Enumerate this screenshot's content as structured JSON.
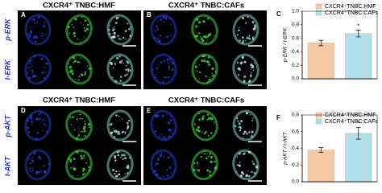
{
  "panels": [
    {
      "letter": "A",
      "title": "CXCR4⁺ TNBC:HMF"
    },
    {
      "letter": "B",
      "title": "CXCR4⁺ TNBC:CAFs"
    },
    {
      "letter": "D",
      "title": "CXCR4⁺ TNBC:HMF"
    },
    {
      "letter": "E",
      "title": "CXCR4⁺ TNBC:CAFs"
    }
  ],
  "row_labels": [
    "p-ERK",
    "t-ERK",
    "p-AKT",
    "t-AKT"
  ],
  "chart_data": [
    {
      "type": "bar",
      "panel": "C",
      "y_label": "p-ERK / t-ERK",
      "series": [
        {
          "name": "CXCR4⁺TNBC:HMF",
          "color": "#f5c9a3",
          "values": [
            0.53
          ],
          "errors": [
            0.04
          ]
        },
        {
          "name": "CXCR4⁺TNBC:CAFs",
          "color": "#b3dfeb",
          "values": [
            0.67
          ],
          "errors": [
            0.05
          ]
        }
      ],
      "annotation": "*",
      "ylim": [
        0,
        1.0
      ],
      "yticks": [
        {
          "value": 0,
          "label": "0.0"
        },
        {
          "value": 0.2,
          "label": "0.2"
        },
        {
          "value": 0.4,
          "label": "0.4"
        },
        {
          "value": 0.6,
          "label": "0.6"
        },
        {
          "value": 0.8,
          "label": "0.8"
        },
        {
          "value": 1.0,
          "label": "1.0"
        }
      ]
    },
    {
      "type": "bar",
      "panel": "F",
      "y_label": "p-AKT / t-AKT",
      "series": [
        {
          "name": "CXCR4⁺TNBC:HMF",
          "color": "#f5c9a3",
          "values": [
            0.38
          ],
          "errors": [
            0.03
          ]
        },
        {
          "name": "CXCR4⁺TNBC:CAFs",
          "color": "#b3dfeb",
          "values": [
            0.58
          ],
          "errors": [
            0.07
          ]
        }
      ],
      "annotation": "*",
      "ylim": [
        0,
        0.8
      ],
      "yticks": [
        {
          "value": 0,
          "label": "0.0"
        },
        {
          "value": 0.2,
          "label": "0.2"
        },
        {
          "value": 0.4,
          "label": "0.4"
        },
        {
          "value": 0.6,
          "label": "0.6"
        },
        {
          "value": 0.8,
          "label": "0.8"
        }
      ]
    }
  ]
}
